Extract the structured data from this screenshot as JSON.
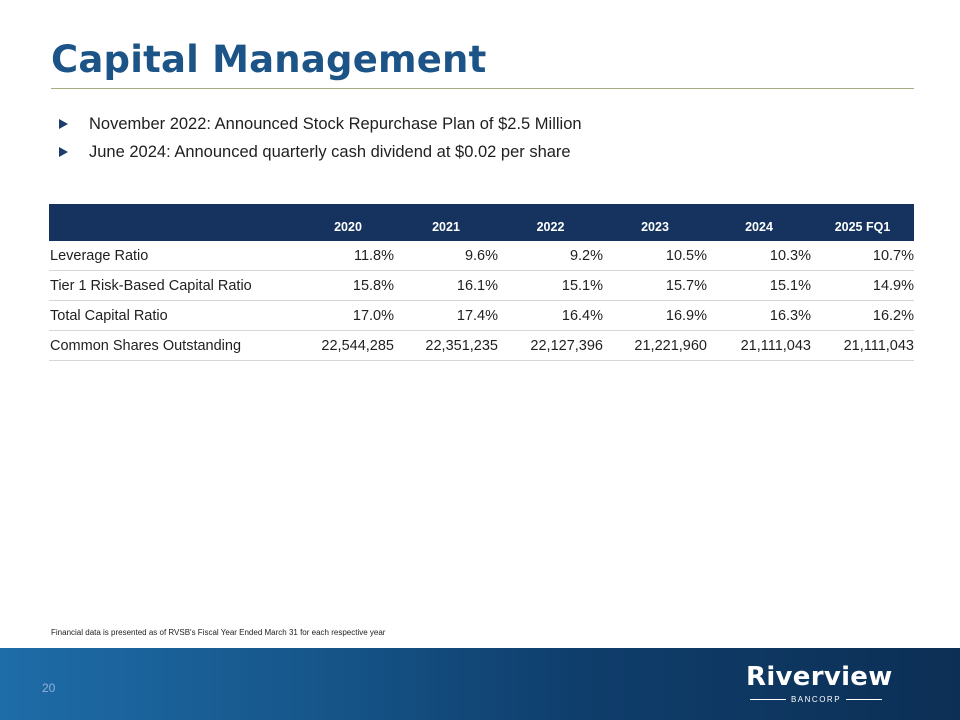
{
  "title": "Capital Management",
  "bullets": [
    "November 2022: Announced Stock Repurchase Plan of $2.5 Million",
    "June 2024: Announced quarterly cash dividend at $0.02 per share"
  ],
  "table": {
    "columns": [
      "",
      "2020",
      "2021",
      "2022",
      "2023",
      "2024",
      "2025 FQ1"
    ],
    "rows": [
      [
        "Leverage Ratio",
        "11.8%",
        "9.6%",
        "9.2%",
        "10.5%",
        "10.3%",
        "10.7%"
      ],
      [
        "Tier 1 Risk-Based Capital Ratio",
        "15.8%",
        "16.1%",
        "15.1%",
        "15.7%",
        "15.1%",
        "14.9%"
      ],
      [
        "Total Capital Ratio",
        "17.0%",
        "17.4%",
        "16.4%",
        "16.9%",
        "16.3%",
        "16.2%"
      ],
      [
        "Common Shares Outstanding",
        "22,544,285",
        "22,351,235",
        "22,127,396",
        "21,221,960",
        "21,111,043",
        "21,111,043"
      ]
    ]
  },
  "footnote": "Financial data is presented as of RVSB's Fiscal Year Ended March 31 for each respective year",
  "footer": {
    "page_number": "20",
    "logo_name": "Riverview",
    "logo_sub": "BANCORP"
  },
  "colors": {
    "title": "#1d5487",
    "table_header": "#15335e",
    "footer_start": "#1e6ca8",
    "footer_end": "#0c2f55"
  }
}
